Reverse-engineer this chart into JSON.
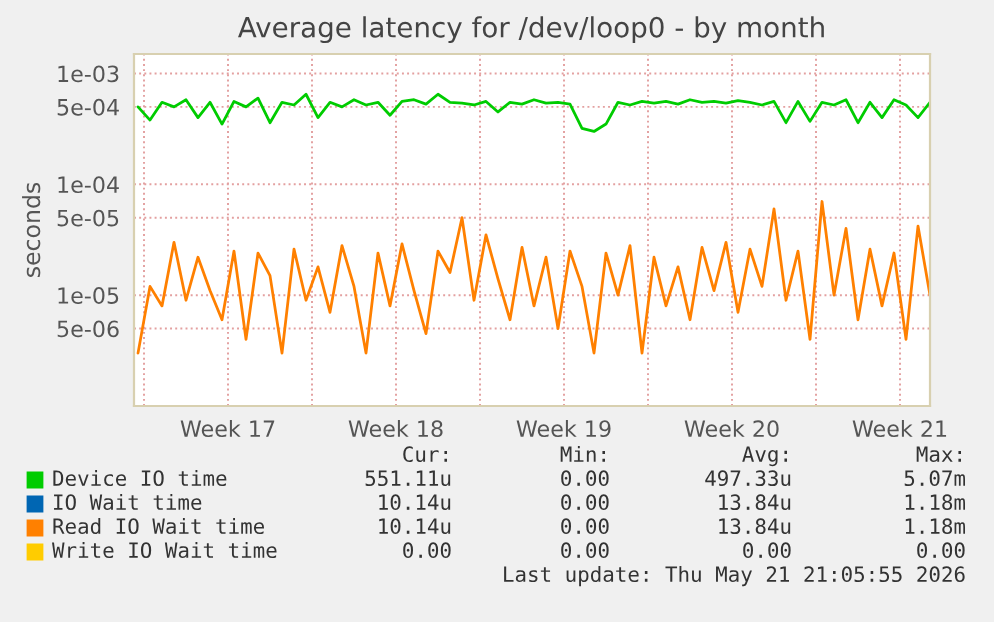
{
  "chart_data": {
    "type": "line",
    "title": "Average latency for /dev/loop0 - by month",
    "ylabel": "seconds",
    "x": [
      "2026-04-19T18:00",
      "2026-04-20T06:00",
      "2026-04-20T18:00",
      "2026-04-21T06:00",
      "2026-04-21T18:00",
      "2026-04-22T06:00",
      "2026-04-22T18:00",
      "2026-04-23T06:00",
      "2026-04-23T18:00",
      "2026-04-24T06:00",
      "2026-04-24T18:00",
      "2026-04-25T06:00",
      "2026-04-25T18:00",
      "2026-04-26T06:00",
      "2026-04-26T18:00",
      "2026-04-27T06:00",
      "2026-04-27T18:00",
      "2026-04-28T06:00",
      "2026-04-28T18:00",
      "2026-04-29T06:00",
      "2026-04-29T18:00",
      "2026-04-30T06:00",
      "2026-04-30T18:00",
      "2026-05-01T06:00",
      "2026-05-01T18:00",
      "2026-05-02T06:00",
      "2026-05-02T18:00",
      "2026-05-03T06:00",
      "2026-05-03T18:00",
      "2026-05-04T06:00",
      "2026-05-04T18:00",
      "2026-05-05T06:00",
      "2026-05-05T18:00",
      "2026-05-06T06:00",
      "2026-05-06T18:00",
      "2026-05-07T06:00",
      "2026-05-07T18:00",
      "2026-05-08T06:00",
      "2026-05-08T18:00",
      "2026-05-09T06:00",
      "2026-05-09T18:00",
      "2026-05-10T06:00",
      "2026-05-10T18:00",
      "2026-05-11T06:00",
      "2026-05-11T18:00",
      "2026-05-12T06:00",
      "2026-05-12T18:00",
      "2026-05-13T06:00",
      "2026-05-13T18:00",
      "2026-05-14T06:00",
      "2026-05-14T18:00",
      "2026-05-15T06:00",
      "2026-05-15T18:00",
      "2026-05-16T06:00",
      "2026-05-16T18:00",
      "2026-05-17T06:00",
      "2026-05-17T18:00",
      "2026-05-18T06:00",
      "2026-05-18T18:00",
      "2026-05-19T06:00",
      "2026-05-19T18:00",
      "2026-05-20T06:00",
      "2026-05-20T18:00",
      "2026-05-21T06:00",
      "2026-05-21T18:00",
      "2026-05-22T06:00",
      "2026-05-22T18:00"
    ],
    "series": [
      {
        "name": "Device IO time",
        "color": "#00cc00",
        "values": [
          0.0005,
          0.00038,
          0.00055,
          0.0005,
          0.00058,
          0.0004,
          0.00055,
          0.00035,
          0.00056,
          0.0005,
          0.0006,
          0.00036,
          0.00055,
          0.00052,
          0.00065,
          0.0004,
          0.00055,
          0.0005,
          0.00058,
          0.00052,
          0.00055,
          0.00042,
          0.00056,
          0.00058,
          0.00053,
          0.00065,
          0.00055,
          0.00054,
          0.00052,
          0.00056,
          0.00045,
          0.00055,
          0.00053,
          0.00058,
          0.00054,
          0.00055,
          0.00053,
          0.00032,
          0.0003,
          0.00035,
          0.00055,
          0.00052,
          0.00056,
          0.00054,
          0.00056,
          0.00053,
          0.00058,
          0.00055,
          0.00056,
          0.00054,
          0.00057,
          0.00055,
          0.00052,
          0.00056,
          0.00036,
          0.00056,
          0.00037,
          0.00055,
          0.00052,
          0.00058,
          0.00036,
          0.00055,
          0.0004,
          0.00058,
          0.00052,
          0.0004,
          0.00055
        ]
      },
      {
        "name": "IO Wait time",
        "color": "#0066b3",
        "values": [
          null,
          null,
          null,
          null,
          null,
          null,
          null,
          null,
          null,
          null,
          null,
          null,
          null,
          null,
          null,
          null,
          null,
          null,
          null,
          null,
          null,
          null,
          null,
          null,
          null,
          null,
          null,
          null,
          null,
          null,
          null,
          null,
          null,
          null,
          null,
          null,
          null,
          null,
          null,
          null,
          null,
          null,
          null,
          null,
          null,
          null,
          null,
          null,
          null,
          null,
          null,
          null,
          null,
          null,
          null,
          null,
          null,
          null,
          null,
          null,
          null,
          null,
          null,
          null,
          null,
          null,
          null
        ]
      },
      {
        "name": "Read IO Wait time",
        "color": "#ff8000",
        "values": [
          3e-06,
          1.2e-05,
          8e-06,
          3e-05,
          9e-06,
          2.2e-05,
          1.1e-05,
          6e-06,
          2.5e-05,
          4e-06,
          2.4e-05,
          1.5e-05,
          3e-06,
          2.6e-05,
          9e-06,
          1.8e-05,
          7e-06,
          2.8e-05,
          1.2e-05,
          3e-06,
          2.4e-05,
          8e-06,
          2.9e-05,
          1.1e-05,
          4.5e-06,
          2.5e-05,
          1.6e-05,
          5e-05,
          9e-06,
          3.5e-05,
          1.4e-05,
          6e-06,
          2.7e-05,
          8e-06,
          2.2e-05,
          5e-06,
          2.5e-05,
          1.2e-05,
          3e-06,
          2.4e-05,
          1e-05,
          2.8e-05,
          3e-06,
          2.2e-05,
          8e-06,
          1.8e-05,
          6e-06,
          2.7e-05,
          1.1e-05,
          3e-05,
          7e-06,
          2.6e-05,
          1.2e-05,
          6e-05,
          9e-06,
          2.5e-05,
          4e-06,
          7e-05,
          1e-05,
          4e-05,
          6e-06,
          2.6e-05,
          8e-06,
          2.4e-05,
          4e-06,
          4.2e-05,
          1e-05
        ]
      },
      {
        "name": "Write IO Wait time",
        "color": "#ffcc00",
        "values": [
          null,
          null,
          null,
          null,
          null,
          null,
          null,
          null,
          null,
          null,
          null,
          null,
          null,
          null,
          null,
          null,
          null,
          null,
          null,
          null,
          null,
          null,
          null,
          null,
          null,
          null,
          null,
          null,
          null,
          null,
          null,
          null,
          null,
          null,
          null,
          null,
          null,
          null,
          null,
          null,
          null,
          null,
          null,
          null,
          null,
          null,
          null,
          null,
          null,
          null,
          null,
          null,
          null,
          null,
          null,
          null,
          null,
          null,
          null,
          null,
          null,
          null,
          null,
          null,
          null,
          null,
          null
        ]
      }
    ],
    "log": true,
    "xlim": [
      "2026-04-19T14:00",
      "2026-05-22T18:00"
    ],
    "xticks": [
      {
        "value": "2026-04-20",
        "label": null
      },
      {
        "value": "2026-04-23T12:00",
        "label": "Week 17"
      },
      {
        "value": "2026-04-27",
        "label": null
      },
      {
        "value": "2026-04-30T12:00",
        "label": "Week 18"
      },
      {
        "value": "2026-05-04",
        "label": null
      },
      {
        "value": "2026-05-07T12:00",
        "label": "Week 19"
      },
      {
        "value": "2026-05-11",
        "label": null
      },
      {
        "value": "2026-05-14T12:00",
        "label": "Week 20"
      },
      {
        "value": "2026-05-18",
        "label": null
      },
      {
        "value": "2026-05-21T12:00",
        "label": "Week 21"
      }
    ],
    "ylim": [
      1e-06,
      0.0015
    ],
    "yticks": [
      {
        "value": 5e-06,
        "label": "5e-06"
      },
      {
        "value": 1e-05,
        "label": "1e-05"
      },
      {
        "value": 5e-05,
        "label": "5e-05"
      },
      {
        "value": 0.0001,
        "label": "1e-04"
      },
      {
        "value": 0.0005,
        "label": "5e-04"
      },
      {
        "value": 0.001,
        "label": "1e-03"
      }
    ],
    "grid": true,
    "legend": "bottom",
    "annotations": [
      "Cur:",
      "Min:",
      "Avg:",
      "Max:",
      "551.11u",
      "0.00",
      "497.33u",
      "5.07m",
      "10.14u",
      "0.00",
      "13.84u",
      "1.18m",
      "10.14u",
      "0.00",
      "13.84u",
      "1.18m",
      "0.00",
      "0.00",
      "0.00",
      "0.00",
      "Last update: Thu May 21 21:05:55 2026"
    ]
  }
}
